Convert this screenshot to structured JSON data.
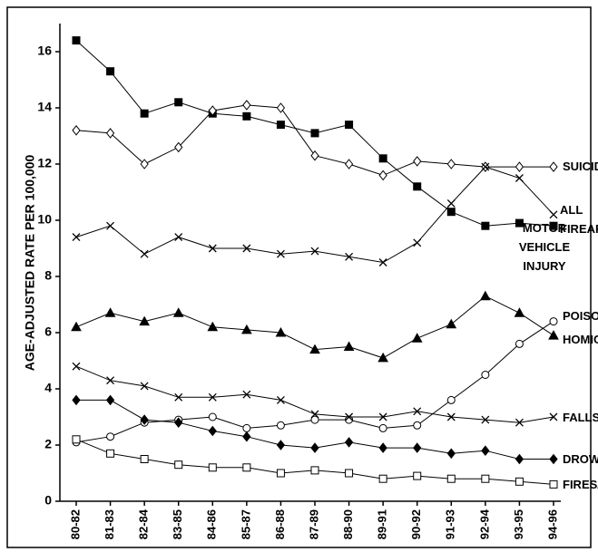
{
  "chart_data": {
    "type": "line",
    "y_label": "AGE-ADJUSTED RATE PER 100,000",
    "categories": [
      "80-82",
      "81-83",
      "82-84",
      "83-85",
      "84-86",
      "85-87",
      "86-88",
      "87-89",
      "88-90",
      "89-91",
      "90-92",
      "91-93",
      "92-94",
      "93-95",
      "94-96"
    ],
    "ylim": [
      0,
      17
    ],
    "yticks": [
      0,
      2,
      4,
      6,
      8,
      10,
      12,
      14,
      16
    ],
    "series": [
      {
        "name": "MOTOR VEHICLE INJURY",
        "color": "#000000",
        "marker": "square-filled",
        "values": [
          16.4,
          15.3,
          13.8,
          14.2,
          13.8,
          13.7,
          13.4,
          13.1,
          13.4,
          12.2,
          11.2,
          10.3,
          9.8,
          9.9,
          9.8
        ]
      },
      {
        "name": "SUICIDE",
        "color": "#000000",
        "marker": "diamond-open",
        "values": [
          13.2,
          13.1,
          12.0,
          12.6,
          13.9,
          14.1,
          14.0,
          12.3,
          12.0,
          11.6,
          12.1,
          12.0,
          11.9,
          11.9,
          11.9
        ]
      },
      {
        "name": "ALL FIREARM",
        "color": "#000000",
        "marker": "x",
        "values": [
          9.4,
          9.8,
          8.8,
          9.4,
          9.0,
          9.0,
          8.8,
          8.9,
          8.7,
          8.5,
          9.2,
          10.6,
          11.9,
          11.5,
          10.2
        ]
      },
      {
        "name": "HOMICIDE",
        "color": "#000000",
        "marker": "triangle-filled",
        "values": [
          6.2,
          6.7,
          6.4,
          6.7,
          6.2,
          6.1,
          6.0,
          5.4,
          5.5,
          5.1,
          5.8,
          6.3,
          7.3,
          6.7,
          5.9
        ]
      },
      {
        "name": "POISONING",
        "color": "#000000",
        "marker": "circle-open",
        "values": [
          2.1,
          2.3,
          2.8,
          2.9,
          3.0,
          2.6,
          2.7,
          2.9,
          2.9,
          2.6,
          2.7,
          3.6,
          4.5,
          5.6,
          6.4
        ]
      },
      {
        "name": "FALLS",
        "color": "#000000",
        "marker": "x",
        "values": [
          4.8,
          4.3,
          4.1,
          3.7,
          3.7,
          3.8,
          3.6,
          3.1,
          3.0,
          3.0,
          3.2,
          3.0,
          2.9,
          2.8,
          3.0
        ]
      },
      {
        "name": "DROWNING",
        "color": "#000000",
        "marker": "diamond-filled",
        "values": [
          3.6,
          3.6,
          2.9,
          2.8,
          2.5,
          2.3,
          2.0,
          1.9,
          2.1,
          1.9,
          1.9,
          1.7,
          1.8,
          1.5,
          1.5
        ]
      },
      {
        "name": "FIRES/BURNS",
        "color": "#000000",
        "marker": "square-open",
        "values": [
          2.2,
          1.7,
          1.5,
          1.3,
          1.2,
          1.2,
          1.0,
          1.1,
          1.0,
          0.8,
          0.9,
          0.8,
          0.8,
          0.7,
          0.6
        ]
      }
    ]
  }
}
